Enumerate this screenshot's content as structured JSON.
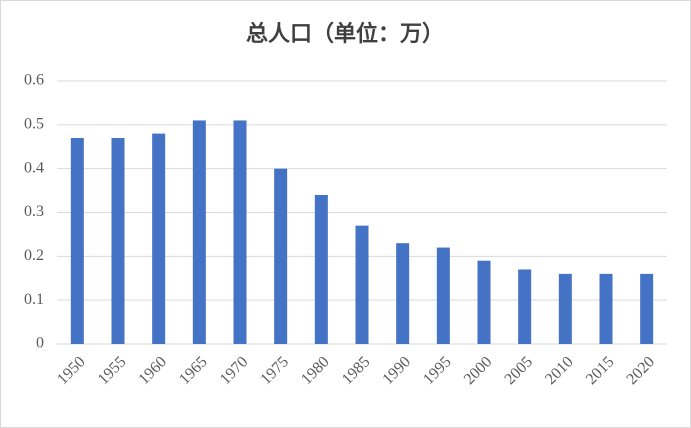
{
  "chart_data": {
    "type": "bar",
    "title": "总人口（单位：万）",
    "categories": [
      "1950",
      "1955",
      "1960",
      "1965",
      "1970",
      "1975",
      "1980",
      "1985",
      "1990",
      "1995",
      "2000",
      "2005",
      "2010",
      "2015",
      "2020"
    ],
    "values": [
      0.47,
      0.47,
      0.48,
      0.51,
      0.51,
      0.4,
      0.34,
      0.27,
      0.23,
      0.22,
      0.19,
      0.17,
      0.16,
      0.16,
      0.16
    ],
    "color": "#4472c4",
    "ylim": [
      0,
      0.6
    ],
    "yticks": [
      0,
      0.1,
      0.2,
      0.3,
      0.4,
      0.5,
      0.6
    ],
    "grid": true
  }
}
